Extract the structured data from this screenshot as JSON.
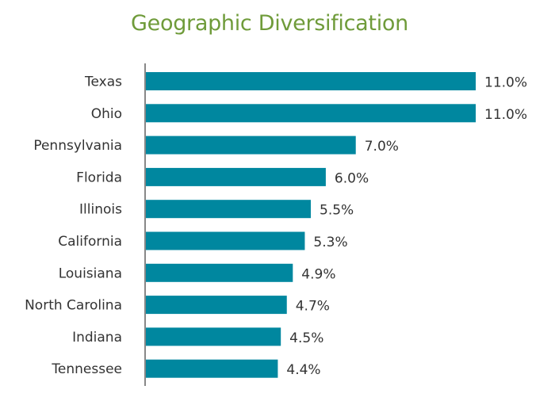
{
  "chart_data": {
    "type": "bar",
    "orientation": "horizontal",
    "title": "Geographic Diversification",
    "categories": [
      "Texas",
      "Ohio",
      "Pennsylvania",
      "Florida",
      "Illinois",
      "California",
      "Louisiana",
      "North Carolina",
      "Indiana",
      "Tennessee"
    ],
    "values": [
      11.0,
      11.0,
      7.0,
      6.0,
      5.5,
      5.3,
      4.9,
      4.7,
      4.5,
      4.4
    ],
    "value_labels": [
      "11.0%",
      "11.0%",
      "7.0%",
      "6.0%",
      "5.5%",
      "5.3%",
      "4.9%",
      "4.7%",
      "4.5%",
      "4.4%"
    ],
    "xlim": [
      0,
      11.0
    ],
    "bar_color": "#00879f",
    "axis_color": "#888888",
    "title_color": "#6f9b3a",
    "grid": false,
    "legend": "none"
  }
}
